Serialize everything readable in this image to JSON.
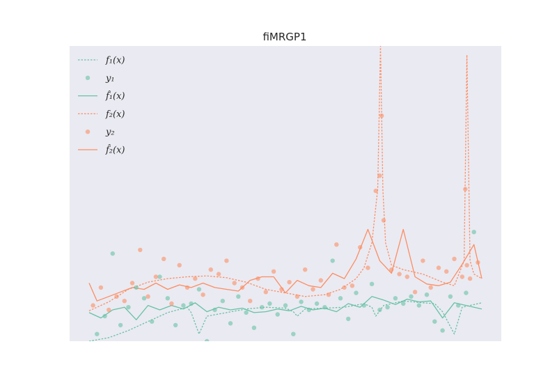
{
  "chart_data": {
    "type": "line",
    "title": "fiMRGP1",
    "xlabel": "",
    "ylabel": "",
    "xlim": [
      0,
      1
    ],
    "ylim": [
      -0.3,
      3.0
    ],
    "grid": false,
    "legend_position": "top-left",
    "colors": {
      "series1": "#66c2a5",
      "series2": "#fc8d62",
      "background": "#eaeaf2"
    },
    "legend": [
      {
        "label": "f₁(x)",
        "style": "dotted",
        "color": "#66c2a5"
      },
      {
        "label": "y₁",
        "style": "marker",
        "color": "#66c2a5"
      },
      {
        "label": "f̂₁(x)",
        "style": "solid",
        "color": "#66c2a5"
      },
      {
        "label": "f₂(x)",
        "style": "dotted",
        "color": "#fc8d62"
      },
      {
        "label": "y₂",
        "style": "marker",
        "color": "#fc8d62"
      },
      {
        "label": "f̂₂(x)",
        "style": "solid",
        "color": "#fc8d62"
      }
    ],
    "series": [
      {
        "name": "f₁(x)",
        "kind": "line",
        "style": "dotted",
        "x": [
          0.0,
          0.05,
          0.1,
          0.15,
          0.2,
          0.25,
          0.26,
          0.28,
          0.3,
          0.35,
          0.4,
          0.45,
          0.5,
          0.52,
          0.53,
          0.55,
          0.6,
          0.65,
          0.7,
          0.72,
          0.73,
          0.75,
          0.8,
          0.85,
          0.88,
          0.9,
          0.93,
          0.95,
          1.0
        ],
        "y": [
          -0.3,
          -0.26,
          -0.18,
          -0.08,
          0.02,
          0.08,
          0.02,
          -0.22,
          -0.02,
          0.02,
          0.06,
          0.08,
          0.07,
          0.03,
          -0.02,
          0.06,
          0.07,
          0.08,
          0.12,
          0.08,
          -0.02,
          0.1,
          0.15,
          0.13,
          0.12,
          0.03,
          -0.22,
          0.08,
          0.13
        ]
      },
      {
        "name": "f̂₁(x)",
        "kind": "line",
        "style": "solid",
        "x": [
          0.0,
          0.03,
          0.06,
          0.09,
          0.12,
          0.15,
          0.18,
          0.21,
          0.24,
          0.27,
          0.3,
          0.33,
          0.36,
          0.39,
          0.42,
          0.45,
          0.48,
          0.51,
          0.54,
          0.57,
          0.6,
          0.63,
          0.66,
          0.69,
          0.72,
          0.75,
          0.78,
          0.81,
          0.84,
          0.87,
          0.9,
          0.93,
          0.96,
          1.0
        ],
        "y": [
          0.02,
          -0.04,
          0.05,
          0.08,
          -0.06,
          0.1,
          0.05,
          0.1,
          0.06,
          0.13,
          0.03,
          0.08,
          0.05,
          0.07,
          0.02,
          0.03,
          0.06,
          0.04,
          0.09,
          0.05,
          0.07,
          0.03,
          0.12,
          0.08,
          0.2,
          0.16,
          0.11,
          0.17,
          0.14,
          0.15,
          -0.04,
          0.13,
          0.1,
          0.06
        ]
      },
      {
        "name": "f₂(x)",
        "kind": "line",
        "style": "dotted",
        "x": [
          0.0,
          0.05,
          0.1,
          0.15,
          0.2,
          0.25,
          0.3,
          0.35,
          0.4,
          0.45,
          0.5,
          0.55,
          0.6,
          0.64,
          0.68,
          0.7,
          0.72,
          0.735,
          0.742,
          0.748,
          0.755,
          0.77,
          0.8,
          0.85,
          0.9,
          0.93,
          0.955,
          0.962,
          0.97,
          0.98,
          1.0
        ],
        "y": [
          0.04,
          0.14,
          0.28,
          0.36,
          0.4,
          0.42,
          0.43,
          0.41,
          0.36,
          0.28,
          0.24,
          0.2,
          0.22,
          0.28,
          0.4,
          0.52,
          0.8,
          1.4,
          3.0,
          1.4,
          0.8,
          0.55,
          0.5,
          0.45,
          0.36,
          0.32,
          0.6,
          2.9,
          0.6,
          0.45,
          0.4
        ]
      },
      {
        "name": "f̂₂(x)",
        "kind": "line",
        "style": "solid",
        "x": [
          0.0,
          0.02,
          0.05,
          0.08,
          0.11,
          0.14,
          0.17,
          0.2,
          0.23,
          0.26,
          0.29,
          0.32,
          0.35,
          0.38,
          0.41,
          0.44,
          0.47,
          0.5,
          0.53,
          0.56,
          0.59,
          0.62,
          0.65,
          0.68,
          0.71,
          0.74,
          0.77,
          0.8,
          0.83,
          0.86,
          0.89,
          0.92,
          0.95,
          0.98,
          1.0
        ],
        "y": [
          0.35,
          0.15,
          0.2,
          0.25,
          0.3,
          0.28,
          0.35,
          0.28,
          0.33,
          0.3,
          0.35,
          0.3,
          0.28,
          0.26,
          0.38,
          0.42,
          0.42,
          0.24,
          0.38,
          0.32,
          0.3,
          0.46,
          0.4,
          0.62,
          0.95,
          0.6,
          0.46,
          0.95,
          0.42,
          0.34,
          0.32,
          0.36,
          0.56,
          0.78,
          0.4
        ]
      },
      {
        "name": "y₁",
        "kind": "scatter",
        "x": [
          0.02,
          0.04,
          0.06,
          0.08,
          0.1,
          0.12,
          0.14,
          0.16,
          0.18,
          0.2,
          0.22,
          0.24,
          0.26,
          0.28,
          0.3,
          0.32,
          0.34,
          0.36,
          0.38,
          0.4,
          0.42,
          0.44,
          0.46,
          0.48,
          0.5,
          0.52,
          0.54,
          0.56,
          0.58,
          0.6,
          0.62,
          0.64,
          0.66,
          0.68,
          0.7,
          0.72,
          0.74,
          0.76,
          0.78,
          0.8,
          0.82,
          0.84,
          0.86,
          0.88,
          0.9,
          0.92,
          0.94,
          0.96,
          0.98
        ],
        "y": [
          -0.22,
          -0.02,
          0.68,
          -0.12,
          0.08,
          0.3,
          0.18,
          -0.08,
          0.42,
          0.18,
          -0.12,
          0.1,
          0.12,
          0.28,
          -0.3,
          0.05,
          0.15,
          -0.1,
          0.2,
          0.02,
          -0.15,
          0.08,
          0.12,
          0.0,
          0.1,
          -0.22,
          0.14,
          0.05,
          0.12,
          0.08,
          0.6,
          0.18,
          -0.05,
          0.24,
          0.1,
          0.34,
          0.05,
          0.08,
          0.18,
          0.12,
          0.2,
          0.1,
          0.22,
          -0.08,
          -0.18,
          0.2,
          0.1,
          0.24,
          0.92
        ]
      },
      {
        "name": "y₂",
        "kind": "scatter",
        "x": [
          0.01,
          0.03,
          0.05,
          0.07,
          0.09,
          0.11,
          0.13,
          0.15,
          0.17,
          0.19,
          0.21,
          0.23,
          0.25,
          0.27,
          0.29,
          0.31,
          0.33,
          0.35,
          0.37,
          0.39,
          0.41,
          0.43,
          0.45,
          0.47,
          0.49,
          0.51,
          0.53,
          0.55,
          0.57,
          0.59,
          0.61,
          0.63,
          0.65,
          0.67,
          0.69,
          0.71,
          0.73,
          0.74,
          0.745,
          0.75,
          0.77,
          0.79,
          0.81,
          0.83,
          0.85,
          0.87,
          0.89,
          0.91,
          0.93,
          0.95,
          0.958,
          0.962,
          0.97,
          0.99
        ],
        "y": [
          0.1,
          0.3,
          0.05,
          0.2,
          0.15,
          0.35,
          0.72,
          0.2,
          0.42,
          0.62,
          0.12,
          0.55,
          0.3,
          0.4,
          0.22,
          0.5,
          0.45,
          0.6,
          0.35,
          0.3,
          0.15,
          0.4,
          0.25,
          0.48,
          0.28,
          0.36,
          0.2,
          0.5,
          0.28,
          0.38,
          0.22,
          0.78,
          0.3,
          0.32,
          0.75,
          0.52,
          1.38,
          1.55,
          2.22,
          1.05,
          0.5,
          0.45,
          0.42,
          0.25,
          0.6,
          0.3,
          0.52,
          0.48,
          0.62,
          0.42,
          1.4,
          0.55,
          0.4,
          0.58
        ]
      }
    ]
  }
}
